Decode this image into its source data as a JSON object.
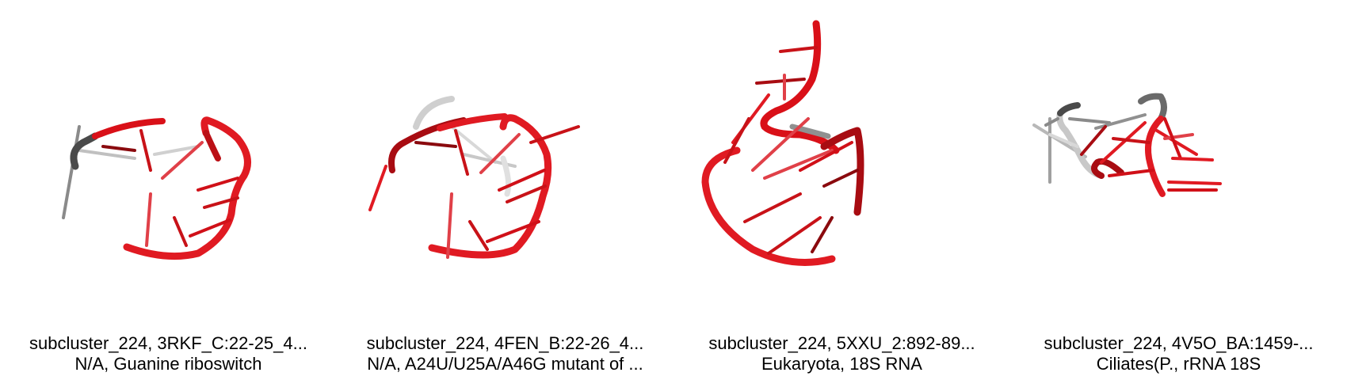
{
  "panels": [
    {
      "title": "subcluster_224, 3RKF_C:22-25_4...",
      "subtitle": "N/A, Guanine riboswitch",
      "image_icon": "rna-3d-structure-icon"
    },
    {
      "title": "subcluster_224, 4FEN_B:22-26_4...",
      "subtitle": "N/A, A24U/U25A/A46G mutant of ...",
      "image_icon": "rna-3d-structure-icon"
    },
    {
      "title": "subcluster_224, 5XXU_2:892-89...",
      "subtitle": "Eukaryota, 18S RNA",
      "image_icon": "rna-3d-structure-icon"
    },
    {
      "title": "subcluster_224, 4V5O_BA:1459-...",
      "subtitle": "Ciliates(P., rRNA 18S",
      "image_icon": "rna-3d-structure-icon"
    }
  ],
  "colors": {
    "backbone_red": "#e0141c",
    "backbone_dark_red": "#8a0a0e",
    "backbone_light_red": "#f0606a",
    "backbone_gray": "#5a5a5a",
    "backbone_light_gray": "#c8c8c8"
  }
}
